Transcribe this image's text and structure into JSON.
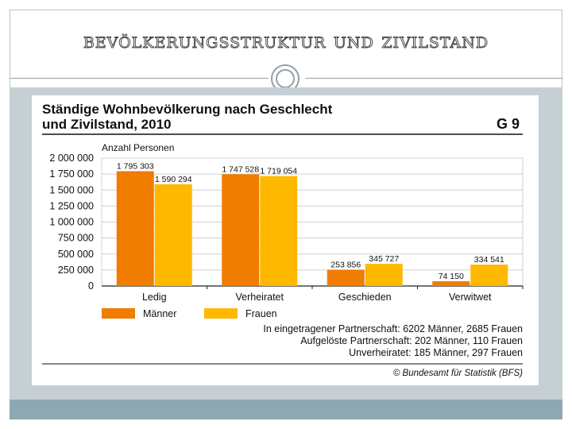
{
  "slide": {
    "title": "Bevölkerungsstruktur und Zivilstand"
  },
  "figure": {
    "title_line1": "Ständige Wohnbevölkerung nach Geschlecht",
    "title_line2": "und Zivilstand, 2010",
    "code": "G 9",
    "source": "© Bundesamt für Statistik (BFS)",
    "notes": [
      "In eingetragener Partnerschaft: 6202 Männer, 2685 Frauen",
      "Aufgelöste Partnerschaft: 202 Männer, 110 Frauen",
      "Unverheiratet: 185 Männer, 297 Frauen"
    ]
  },
  "chart_data": {
    "type": "bar",
    "title": "Ständige Wohnbevölkerung nach Geschlecht und Zivilstand, 2010",
    "ylabel": "Anzahl Personen",
    "xlabel": "",
    "categories": [
      "Ledig",
      "Verheiratet",
      "Geschieden",
      "Verwitwet"
    ],
    "series": [
      {
        "name": "Männer",
        "values": [
          1795303,
          1747528,
          253856,
          74150
        ],
        "labels": [
          "1 795 303",
          "1 747 528",
          "253 856",
          "74 150"
        ]
      },
      {
        "name": "Frauen",
        "values": [
          1590294,
          1719054,
          345727,
          334541
        ],
        "labels": [
          "1 590 294",
          "1 719 054",
          "345 727",
          "334 541"
        ]
      }
    ],
    "yticks": [
      0,
      250000,
      500000,
      750000,
      1000000,
      1250000,
      1500000,
      1750000,
      2000000
    ],
    "ytick_labels": [
      "0",
      "250 000",
      "500 000",
      "750 000",
      "1 000 000",
      "1 250 000",
      "1 500 000",
      "1 750 000",
      "2 000 000"
    ],
    "ylim": [
      0,
      2000000
    ],
    "grid": true,
    "legend": "bottom-left",
    "colors": {
      "Männer": "#f07c00",
      "Frauen": "#ffb800",
      "grid": "#d0d0d0",
      "axis": "#222222"
    }
  }
}
